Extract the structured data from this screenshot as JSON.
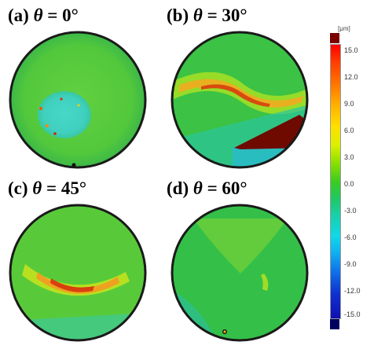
{
  "panels": [
    {
      "id": "a",
      "prefix": "(a) ",
      "theta": "θ",
      "suffix": " = 0°"
    },
    {
      "id": "b",
      "prefix": "(b) ",
      "theta": "θ",
      "suffix": " = 30°"
    },
    {
      "id": "c",
      "prefix": "(c) ",
      "theta": "θ",
      "suffix": " = 45°"
    },
    {
      "id": "d",
      "prefix": "(d) ",
      "theta": "θ",
      "suffix": " = 60°"
    }
  ],
  "legend": {
    "unit": "[μm]",
    "ticks": [
      "15.0",
      "12.0",
      "9.0",
      "6.0",
      "3.0",
      "0.0",
      "-3.0",
      "-6.0",
      "-9.0",
      "-12.0",
      "-15.0"
    ],
    "over_color": "#7a0000",
    "under_color": "#000060"
  },
  "colors": {
    "rim": "#1a1a1a",
    "base_green": "#4cc83a",
    "high": "#d84010",
    "low": "#30c8e0"
  }
}
